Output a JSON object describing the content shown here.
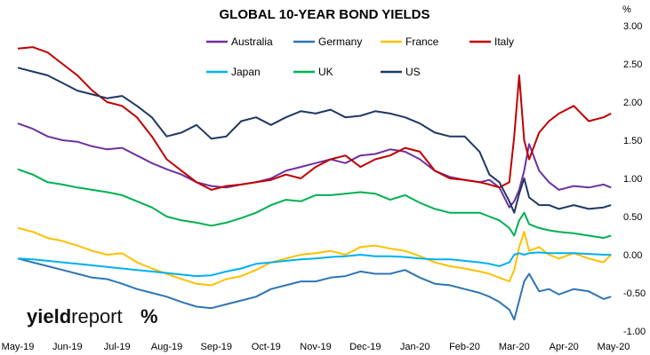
{
  "chart_data": {
    "type": "line",
    "title": "GLOBAL 10-YEAR BOND YIELDS",
    "ylabel": "%",
    "ylim": [
      -1.0,
      3.0
    ],
    "yticks": [
      "3.00",
      "2.50",
      "2.00",
      "1.50",
      "1.00",
      "0.50",
      "0.00",
      "-0.50",
      "-1.00"
    ],
    "ytick_values": [
      3.0,
      2.5,
      2.0,
      1.5,
      1.0,
      0.5,
      0.0,
      -0.5,
      -1.0
    ],
    "xticks": [
      "May-19",
      "Jun-19",
      "Jul-19",
      "Aug-19",
      "Sep-19",
      "Oct-19",
      "Nov-19",
      "Dec-19",
      "Jan-20",
      "Feb-20",
      "Mar-20",
      "Apr-20",
      "May-20"
    ],
    "xlim": [
      0,
      12
    ],
    "grid": false,
    "legend_position": "top-center",
    "series": [
      {
        "name": "Australia",
        "color": "#7030A0",
        "x": [
          0,
          0.3,
          0.6,
          0.9,
          1.2,
          1.5,
          1.8,
          2.1,
          2.4,
          2.7,
          3.0,
          3.3,
          3.6,
          3.9,
          4.2,
          4.5,
          4.8,
          5.1,
          5.4,
          5.7,
          6.0,
          6.3,
          6.6,
          6.9,
          7.2,
          7.5,
          7.8,
          8.1,
          8.4,
          8.7,
          9.0,
          9.3,
          9.5,
          9.7,
          9.9,
          10.0,
          10.1,
          10.2,
          10.3,
          10.5,
          10.7,
          10.9,
          11.2,
          11.5,
          11.8,
          11.95
        ],
        "y": [
          1.72,
          1.65,
          1.55,
          1.5,
          1.48,
          1.42,
          1.38,
          1.4,
          1.3,
          1.2,
          1.12,
          1.05,
          0.95,
          0.9,
          0.88,
          0.92,
          0.95,
          1.0,
          1.1,
          1.15,
          1.2,
          1.25,
          1.2,
          1.3,
          1.32,
          1.38,
          1.35,
          1.25,
          1.1,
          1.02,
          0.98,
          0.95,
          0.98,
          0.88,
          0.62,
          0.7,
          0.85,
          1.1,
          1.45,
          1.1,
          0.95,
          0.85,
          0.9,
          0.88,
          0.92,
          0.88
        ]
      },
      {
        "name": "Germany",
        "color": "#2E75B6",
        "x": [
          0,
          0.3,
          0.6,
          0.9,
          1.2,
          1.5,
          1.8,
          2.1,
          2.4,
          2.7,
          3.0,
          3.3,
          3.6,
          3.9,
          4.2,
          4.5,
          4.8,
          5.1,
          5.4,
          5.7,
          6.0,
          6.3,
          6.6,
          6.9,
          7.2,
          7.5,
          7.8,
          8.1,
          8.4,
          8.7,
          9.0,
          9.3,
          9.5,
          9.7,
          9.9,
          10.0,
          10.1,
          10.2,
          10.3,
          10.5,
          10.7,
          10.9,
          11.2,
          11.5,
          11.8,
          11.95
        ],
        "y": [
          -0.05,
          -0.1,
          -0.15,
          -0.2,
          -0.25,
          -0.3,
          -0.32,
          -0.38,
          -0.45,
          -0.5,
          -0.55,
          -0.62,
          -0.68,
          -0.7,
          -0.65,
          -0.6,
          -0.55,
          -0.45,
          -0.4,
          -0.35,
          -0.35,
          -0.3,
          -0.28,
          -0.22,
          -0.25,
          -0.25,
          -0.2,
          -0.3,
          -0.38,
          -0.4,
          -0.45,
          -0.5,
          -0.55,
          -0.62,
          -0.72,
          -0.85,
          -0.6,
          -0.35,
          -0.25,
          -0.48,
          -0.45,
          -0.52,
          -0.45,
          -0.48,
          -0.58,
          -0.55
        ]
      },
      {
        "name": "France",
        "color": "#FFC000",
        "x": [
          0,
          0.3,
          0.6,
          0.9,
          1.2,
          1.5,
          1.8,
          2.1,
          2.4,
          2.7,
          3.0,
          3.3,
          3.6,
          3.9,
          4.2,
          4.5,
          4.8,
          5.1,
          5.4,
          5.7,
          6.0,
          6.3,
          6.6,
          6.9,
          7.2,
          7.5,
          7.8,
          8.1,
          8.4,
          8.7,
          9.0,
          9.3,
          9.5,
          9.7,
          9.9,
          10.0,
          10.1,
          10.2,
          10.3,
          10.5,
          10.7,
          10.9,
          11.2,
          11.5,
          11.8,
          11.95
        ],
        "y": [
          0.35,
          0.3,
          0.22,
          0.18,
          0.12,
          0.05,
          0.0,
          0.02,
          -0.1,
          -0.18,
          -0.25,
          -0.32,
          -0.38,
          -0.4,
          -0.32,
          -0.28,
          -0.2,
          -0.1,
          -0.05,
          0.0,
          0.02,
          0.05,
          0.0,
          0.1,
          0.12,
          0.08,
          0.05,
          -0.02,
          -0.1,
          -0.15,
          -0.18,
          -0.22,
          -0.25,
          -0.3,
          -0.35,
          -0.2,
          0.1,
          0.3,
          0.05,
          0.1,
          0.0,
          -0.05,
          0.02,
          -0.05,
          -0.1,
          0.0
        ]
      },
      {
        "name": "Italy",
        "color": "#C00000",
        "x": [
          0,
          0.3,
          0.6,
          0.9,
          1.2,
          1.5,
          1.8,
          2.1,
          2.4,
          2.7,
          3.0,
          3.3,
          3.6,
          3.9,
          4.2,
          4.5,
          4.8,
          5.1,
          5.4,
          5.7,
          6.0,
          6.3,
          6.6,
          6.9,
          7.2,
          7.5,
          7.8,
          8.1,
          8.4,
          8.7,
          9.0,
          9.3,
          9.5,
          9.7,
          9.9,
          10.0,
          10.1,
          10.2,
          10.3,
          10.5,
          10.7,
          10.9,
          11.2,
          11.5,
          11.8,
          11.95
        ],
        "y": [
          2.7,
          2.72,
          2.65,
          2.5,
          2.35,
          2.15,
          2.0,
          1.95,
          1.8,
          1.55,
          1.25,
          1.1,
          0.95,
          0.85,
          0.9,
          0.92,
          0.95,
          0.98,
          1.05,
          1.0,
          1.15,
          1.25,
          1.3,
          1.15,
          1.25,
          1.3,
          1.4,
          1.35,
          1.1,
          1.0,
          0.98,
          0.95,
          0.92,
          0.88,
          0.95,
          1.55,
          2.35,
          1.5,
          1.25,
          1.6,
          1.75,
          1.85,
          1.95,
          1.75,
          1.8,
          1.85
        ]
      },
      {
        "name": "Japan",
        "color": "#00B0F0",
        "x": [
          0,
          0.3,
          0.6,
          0.9,
          1.2,
          1.5,
          1.8,
          2.1,
          2.4,
          2.7,
          3.0,
          3.3,
          3.6,
          3.9,
          4.2,
          4.5,
          4.8,
          5.1,
          5.4,
          5.7,
          6.0,
          6.3,
          6.6,
          6.9,
          7.2,
          7.5,
          7.8,
          8.1,
          8.4,
          8.7,
          9.0,
          9.3,
          9.5,
          9.7,
          9.9,
          10.0,
          10.1,
          10.2,
          10.3,
          10.5,
          10.7,
          10.9,
          11.2,
          11.5,
          11.8,
          11.95
        ],
        "y": [
          -0.05,
          -0.06,
          -0.08,
          -0.1,
          -0.12,
          -0.14,
          -0.16,
          -0.18,
          -0.2,
          -0.22,
          -0.24,
          -0.26,
          -0.28,
          -0.27,
          -0.22,
          -0.18,
          -0.12,
          -0.1,
          -0.08,
          -0.06,
          -0.05,
          -0.03,
          -0.02,
          0.0,
          -0.02,
          -0.02,
          -0.03,
          -0.05,
          -0.06,
          -0.06,
          -0.08,
          -0.1,
          -0.12,
          -0.15,
          -0.1,
          0.0,
          0.02,
          0.0,
          0.02,
          0.03,
          0.02,
          0.02,
          0.02,
          0.01,
          0.0,
          0.0
        ]
      },
      {
        "name": "UK",
        "color": "#00B050",
        "x": [
          0,
          0.3,
          0.6,
          0.9,
          1.2,
          1.5,
          1.8,
          2.1,
          2.4,
          2.7,
          3.0,
          3.3,
          3.6,
          3.9,
          4.2,
          4.5,
          4.8,
          5.1,
          5.4,
          5.7,
          6.0,
          6.3,
          6.6,
          6.9,
          7.2,
          7.5,
          7.8,
          8.1,
          8.4,
          8.7,
          9.0,
          9.3,
          9.5,
          9.7,
          9.9,
          10.0,
          10.1,
          10.2,
          10.3,
          10.5,
          10.7,
          10.9,
          11.2,
          11.5,
          11.8,
          11.95
        ],
        "y": [
          1.12,
          1.05,
          0.95,
          0.92,
          0.88,
          0.85,
          0.82,
          0.78,
          0.7,
          0.62,
          0.5,
          0.45,
          0.42,
          0.38,
          0.42,
          0.48,
          0.55,
          0.65,
          0.72,
          0.7,
          0.78,
          0.78,
          0.8,
          0.82,
          0.8,
          0.72,
          0.78,
          0.68,
          0.6,
          0.55,
          0.55,
          0.55,
          0.5,
          0.45,
          0.35,
          0.25,
          0.45,
          0.55,
          0.4,
          0.35,
          0.32,
          0.3,
          0.28,
          0.25,
          0.22,
          0.25
        ]
      },
      {
        "name": "US",
        "color": "#1F3864",
        "x": [
          0,
          0.3,
          0.6,
          0.9,
          1.2,
          1.5,
          1.8,
          2.1,
          2.4,
          2.7,
          3.0,
          3.3,
          3.6,
          3.9,
          4.2,
          4.5,
          4.8,
          5.1,
          5.4,
          5.7,
          6.0,
          6.3,
          6.6,
          6.9,
          7.2,
          7.5,
          7.8,
          8.1,
          8.4,
          8.7,
          9.0,
          9.3,
          9.5,
          9.7,
          9.9,
          10.0,
          10.1,
          10.2,
          10.3,
          10.5,
          10.7,
          10.9,
          11.2,
          11.5,
          11.8,
          11.95
        ],
        "y": [
          2.45,
          2.4,
          2.35,
          2.25,
          2.15,
          2.1,
          2.05,
          2.08,
          1.95,
          1.8,
          1.55,
          1.6,
          1.7,
          1.52,
          1.55,
          1.75,
          1.8,
          1.7,
          1.8,
          1.88,
          1.85,
          1.9,
          1.8,
          1.82,
          1.88,
          1.85,
          1.8,
          1.72,
          1.6,
          1.55,
          1.55,
          1.35,
          1.05,
          0.95,
          0.7,
          0.55,
          0.8,
          1.0,
          0.75,
          0.65,
          0.65,
          0.6,
          0.65,
          0.6,
          0.62,
          0.65
        ]
      }
    ],
    "legend_rows": [
      [
        "Australia",
        "Germany",
        "France",
        "Italy"
      ],
      [
        "Japan",
        "UK",
        "US"
      ]
    ]
  },
  "logo": {
    "text_bold": "yield",
    "text_regular": "report",
    "text_mark": "%",
    "mark_color": "#C00000"
  }
}
